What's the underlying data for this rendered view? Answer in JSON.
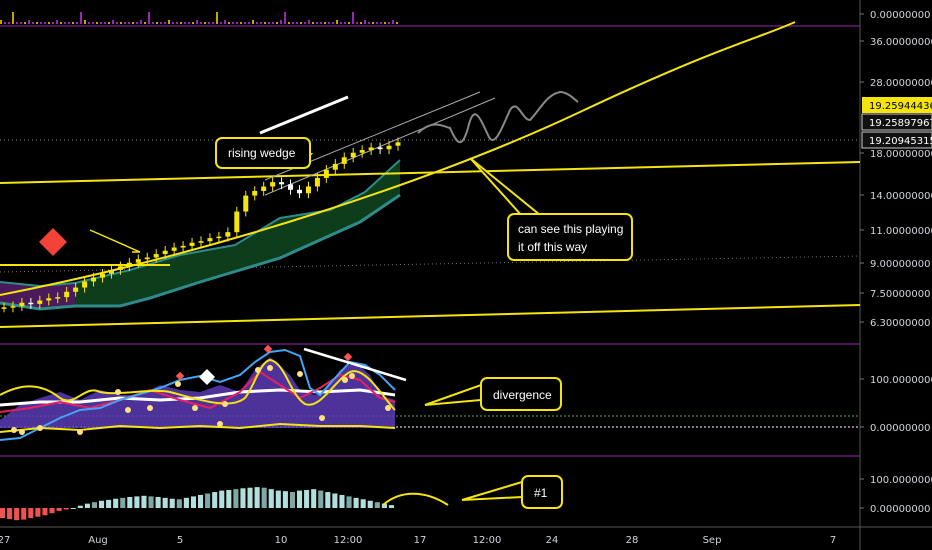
{
  "chart_data": [
    {
      "panel": "volume",
      "type": "bar",
      "y_ticks": [
        "0.00000000"
      ]
    },
    {
      "panel": "price",
      "type": "candlestick",
      "y_scale": "log",
      "y_ticks": [
        "36.00000000",
        "28.00000000",
        "18.00000000",
        "14.00000000",
        "11.00000000",
        "9.00000000",
        "7.50000000",
        "6.30000000"
      ],
      "price_labels": [
        {
          "value": "19.25944436",
          "color": "#f5e50d"
        },
        {
          "value": "19.25897967",
          "color": "#ffffff"
        },
        {
          "value": "19.20945315",
          "color": "#ffffff"
        }
      ],
      "close_series": [
        6.9,
        6.95,
        7.1,
        7.05,
        7.2,
        7.3,
        7.35,
        7.6,
        7.8,
        8.1,
        8.3,
        8.5,
        8.7,
        8.9,
        9.1,
        9.3,
        9.4,
        9.6,
        9.8,
        10.0,
        10.1,
        10.3,
        10.4,
        10.6,
        10.7,
        11.0,
        12.5,
        13.8,
        14.2,
        14.6,
        15.0,
        14.8,
        14.3,
        14.0,
        14.6,
        15.4,
        16.2,
        16.8,
        17.5,
        18.0,
        18.3,
        18.6,
        18.4,
        18.8,
        19.2
      ],
      "annotations": [
        {
          "text": "rising wedge"
        },
        {
          "text_lines": [
            "can see this playing",
            "it off this way"
          ]
        }
      ]
    },
    {
      "panel": "oscillator",
      "type": "line",
      "y_ticks": [
        "100.00000000",
        "0.00000000"
      ],
      "annotations": [
        {
          "text": "divergence"
        }
      ]
    },
    {
      "panel": "histogram",
      "type": "bar",
      "y_ticks": [
        "100.00000000",
        "0.00000000"
      ],
      "values": [
        -35,
        -38,
        -42,
        -40,
        -35,
        -30,
        -25,
        -18,
        -10,
        -5,
        0,
        8,
        15,
        20,
        25,
        28,
        32,
        35,
        38,
        40,
        42,
        40,
        38,
        35,
        32,
        30,
        35,
        40,
        45,
        50,
        55,
        60,
        62,
        65,
        68,
        70,
        72,
        70,
        65,
        60,
        58,
        55,
        60,
        62,
        65,
        60,
        55,
        50,
        45,
        40,
        35,
        30,
        25,
        20,
        15,
        10
      ],
      "annotations": [
        {
          "text": "#1"
        }
      ]
    }
  ],
  "x_axis": {
    "labels": [
      "27",
      "Aug",
      "5",
      "10",
      "12:00",
      "17",
      "12:00",
      "24",
      "28",
      "Sep",
      "7"
    ]
  },
  "colors": {
    "background": "#000000",
    "yellow": "#f5e50d",
    "teal": "#2e8b8b",
    "cloud_green": "#0d3d1a",
    "cloud_purple": "#4a1a5a",
    "histogram_pos": "#b2dfdb",
    "histogram_neg": "#ef5350",
    "divider": "#9c27b0"
  }
}
